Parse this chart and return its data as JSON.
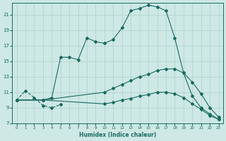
{
  "xlabel": "Humidex (Indice chaleur)",
  "background_color": "#cde8e5",
  "grid_color": "#b0d0cc",
  "line_color": "#1a6b60",
  "xlim": [
    -0.5,
    23.5
  ],
  "ylim": [
    7,
    22.5
  ],
  "xticks": [
    0,
    1,
    2,
    3,
    4,
    5,
    6,
    7,
    8,
    9,
    10,
    11,
    12,
    13,
    14,
    15,
    16,
    17,
    18,
    19,
    20,
    21,
    22,
    23
  ],
  "yticks": [
    7,
    9,
    11,
    13,
    15,
    17,
    19,
    21
  ],
  "line1_x": [
    0,
    1,
    2,
    3,
    4,
    5
  ],
  "line1_y": [
    10.0,
    11.2,
    10.3,
    9.3,
    9.0,
    9.4
  ],
  "line2_x": [
    0,
    3,
    4,
    5,
    6,
    7,
    8,
    9,
    10,
    11,
    12,
    13,
    14,
    15,
    16,
    17,
    18,
    19,
    20,
    21,
    22,
    23
  ],
  "line2_y": [
    10.0,
    10.0,
    10.3,
    15.5,
    15.5,
    15.2,
    18.0,
    17.5,
    17.3,
    17.8,
    19.3,
    21.5,
    21.8,
    22.2,
    22.0,
    21.5,
    18.0,
    13.5,
    10.5,
    9.0,
    8.2,
    7.5
  ],
  "line3_x": [
    0,
    3,
    10,
    11,
    12,
    13,
    14,
    15,
    16,
    17,
    18,
    19,
    20,
    21,
    22,
    23
  ],
  "line3_y": [
    10.0,
    10.0,
    11.0,
    11.5,
    12.0,
    12.5,
    13.0,
    13.3,
    13.8,
    14.0,
    14.0,
    13.5,
    12.3,
    10.8,
    9.0,
    7.8
  ],
  "line4_x": [
    0,
    3,
    10,
    11,
    12,
    13,
    14,
    15,
    16,
    17,
    18,
    19,
    20,
    21,
    22,
    23
  ],
  "line4_y": [
    10.0,
    10.0,
    9.5,
    9.7,
    10.0,
    10.2,
    10.5,
    10.7,
    11.0,
    11.0,
    10.8,
    10.3,
    9.5,
    8.8,
    8.0,
    7.5
  ]
}
